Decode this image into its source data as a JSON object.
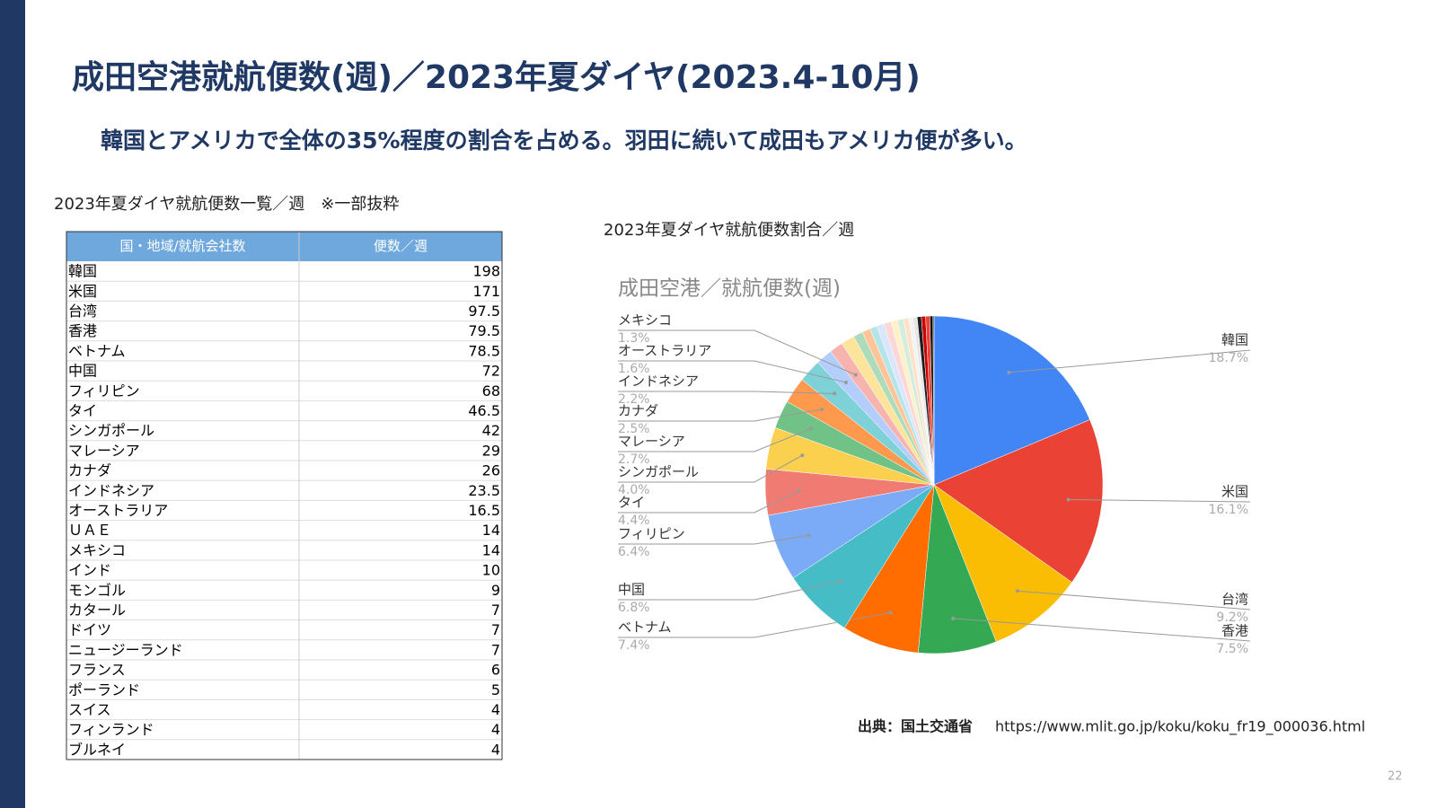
{
  "header": {
    "title": "成田空港就航便数(週)／2023年夏ダイヤ(2023.4-10月)",
    "subtitle": "韓国とアメリカで全体の35%程度の割合を占める。羽田に続いて成田もアメリカ便が多い。"
  },
  "table": {
    "caption": "2023年夏ダイヤ就航便数一覧／週　※一部抜粋",
    "columns": [
      "国・地域/就航会社数",
      "便数／週"
    ],
    "rows": [
      [
        "韓国",
        198
      ],
      [
        "米国",
        171
      ],
      [
        "台湾",
        97.5
      ],
      [
        "香港",
        79.5
      ],
      [
        "ベトナム",
        78.5
      ],
      [
        "中国",
        72
      ],
      [
        "フィリピン",
        68
      ],
      [
        "タイ",
        46.5
      ],
      [
        "シンガポール",
        42
      ],
      [
        "マレーシア",
        29
      ],
      [
        "カナダ",
        26
      ],
      [
        "インドネシア",
        23.5
      ],
      [
        "オーストラリア",
        16.5
      ],
      [
        "ＵＡＥ",
        14
      ],
      [
        "メキシコ",
        14
      ],
      [
        "インド",
        10
      ],
      [
        "モンゴル",
        9
      ],
      [
        "カタール",
        7
      ],
      [
        "ドイツ",
        7
      ],
      [
        "ニュージーランド",
        7
      ],
      [
        "フランス",
        6
      ],
      [
        "ポーランド",
        5
      ],
      [
        "スイス",
        4
      ],
      [
        "フィンランド",
        4
      ],
      [
        "ブルネイ",
        4
      ]
    ]
  },
  "chart_caption": "2023年夏ダイヤ就航便数割合／週",
  "chart_data": {
    "type": "pie",
    "title": "成田空港／就航便数(週)",
    "categories": [
      "韓国",
      "米国",
      "台湾",
      "香港",
      "ベトナム",
      "中国",
      "フィリピン",
      "タイ",
      "シンガポール",
      "マレーシア",
      "カナダ",
      "インドネシア",
      "オーストラリア",
      "メキシコ",
      null,
      null,
      null,
      null,
      null,
      null,
      null,
      null,
      null,
      null,
      null,
      null,
      null,
      null,
      null,
      null
    ],
    "values": [
      18.7,
      16.1,
      9.2,
      7.5,
      7.4,
      6.8,
      6.4,
      4.4,
      4.0,
      2.7,
      2.5,
      2.2,
      1.6,
      1.3,
      1.3,
      0.9,
      0.8,
      0.7,
      0.7,
      0.7,
      0.6,
      0.6,
      0.5,
      0.4,
      0.4,
      0.4,
      0.4,
      0.4,
      0.3,
      0.1
    ],
    "value_labels": [
      "18.7%",
      "16.1%",
      "9.2%",
      "7.5%",
      "7.4%",
      "6.8%",
      "6.4%",
      "4.4%",
      "4.0%",
      "2.7%",
      "2.5%",
      "2.2%",
      "1.6%",
      "1.3%",
      null,
      null,
      null,
      null,
      null,
      null,
      null,
      null,
      null,
      null,
      null,
      null,
      null,
      null,
      null,
      null
    ],
    "colors": [
      "#4285f4",
      "#ea4335",
      "#fbbc04",
      "#34a853",
      "#ff6d01",
      "#46bdc6",
      "#7baaf7",
      "#f07b72",
      "#fcd04f",
      "#71c287",
      "#ff994d",
      "#7ed1d7",
      "#b3cefb",
      "#f7b4ae",
      "#fde49b",
      "#aedcba",
      "#ffc599",
      "#b5e5e8",
      "#d9e6fd",
      "#fbd8d5",
      "#fef1c8",
      "#d5eddd",
      "#ffe0c8",
      "#f3f3f3",
      "#e6e6e6",
      "#1f1f1f",
      "#cc0000",
      "#ea4335",
      "#111111",
      "#434343"
    ]
  },
  "source": {
    "label": "出典：国土交通省",
    "url": "https://www.mlit.go.jp/koku/koku_fr19_000036.html"
  },
  "page_number": "22"
}
